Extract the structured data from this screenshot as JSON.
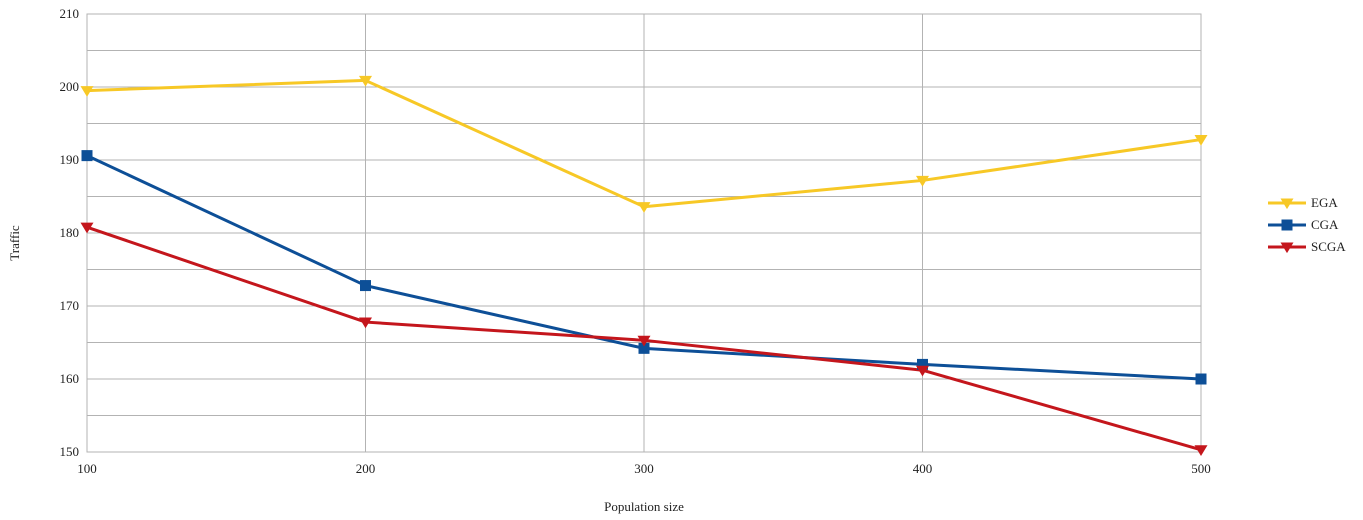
{
  "chart_data": {
    "type": "line",
    "x": [
      100,
      200,
      300,
      400,
      500
    ],
    "xticks": [
      "100",
      "200",
      "300",
      "400",
      "500"
    ],
    "yticks": [
      "150",
      "160",
      "170",
      "180",
      "190",
      "200",
      "210"
    ],
    "xlim": [
      100,
      500
    ],
    "ylim": [
      150,
      210
    ],
    "xlabel": "Population size",
    "ylabel": "Traffic",
    "grid": true,
    "legend_position": "right",
    "series": [
      {
        "name": "EGA",
        "color": "#f7c826",
        "marker": "triangle-down",
        "values": [
          199.5,
          200.9,
          183.6,
          187.2,
          192.8
        ]
      },
      {
        "name": "CGA",
        "color": "#0d4f97",
        "marker": "square",
        "values": [
          190.6,
          172.8,
          164.2,
          162.0,
          160.0
        ]
      },
      {
        "name": "SCGA",
        "color": "#c4161c",
        "marker": "triangle-down",
        "values": [
          180.8,
          167.8,
          165.3,
          161.2,
          150.3
        ]
      }
    ]
  }
}
